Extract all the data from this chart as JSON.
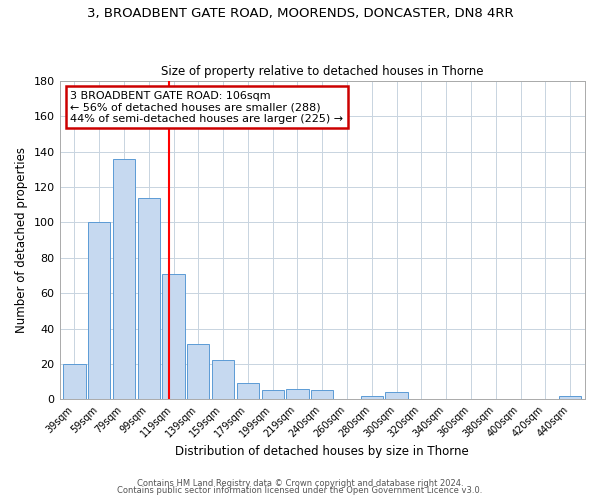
{
  "title_line1": "3, BROADBENT GATE ROAD, MOORENDS, DONCASTER, DN8 4RR",
  "title_line2": "Size of property relative to detached houses in Thorne",
  "xlabel": "Distribution of detached houses by size in Thorne",
  "ylabel": "Number of detached properties",
  "bar_labels": [
    "39sqm",
    "59sqm",
    "79sqm",
    "99sqm",
    "119sqm",
    "139sqm",
    "159sqm",
    "179sqm",
    "199sqm",
    "219sqm",
    "240sqm",
    "260sqm",
    "280sqm",
    "300sqm",
    "320sqm",
    "340sqm",
    "360sqm",
    "380sqm",
    "400sqm",
    "420sqm",
    "440sqm"
  ],
  "bar_values": [
    20,
    100,
    136,
    114,
    71,
    31,
    22,
    9,
    5,
    6,
    5,
    0,
    2,
    4,
    0,
    0,
    0,
    0,
    0,
    0,
    2
  ],
  "bar_color": "#c6d9f0",
  "bar_edge_color": "#5b9bd5",
  "vline_x": 3.8,
  "vline_color": "red",
  "ylim": [
    0,
    180
  ],
  "yticks": [
    0,
    20,
    40,
    60,
    80,
    100,
    120,
    140,
    160,
    180
  ],
  "annotation_title": "3 BROADBENT GATE ROAD: 106sqm",
  "annotation_line1": "← 56% of detached houses are smaller (288)",
  "annotation_line2": "44% of semi-detached houses are larger (225) →",
  "annotation_box_color": "#ffffff",
  "annotation_box_edge": "#cc0000",
  "footer_line1": "Contains HM Land Registry data © Crown copyright and database right 2024.",
  "footer_line2": "Contains public sector information licensed under the Open Government Licence v3.0.",
  "background_color": "#ffffff",
  "grid_color": "#c8d4e0"
}
